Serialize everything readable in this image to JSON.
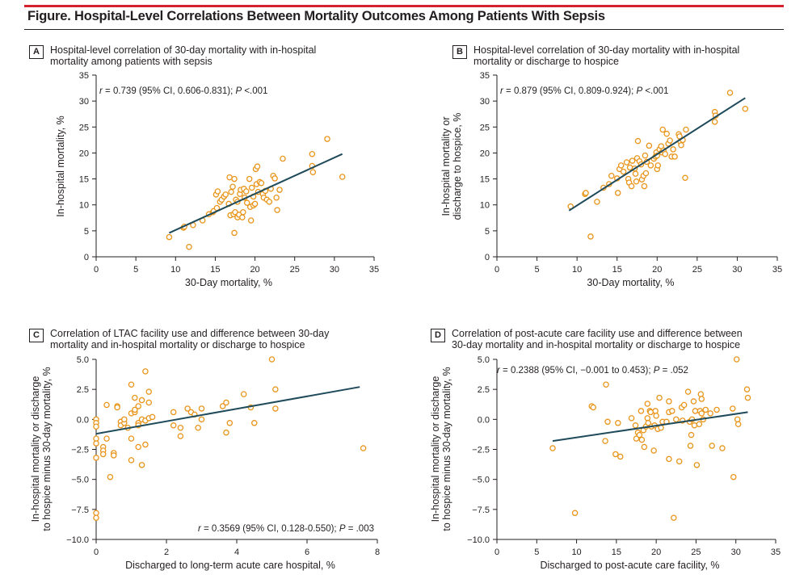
{
  "figure_title": "Figure. Hospital-Level Correlations Between Mortality Outcomes Among Patients With Sepsis",
  "colors": {
    "accent_bar": "#d5202e",
    "marker_stroke": "#e8951a",
    "line": "#1f4a5a",
    "axis": "#231f20"
  },
  "chart_data": [
    {
      "id": "A",
      "type": "scatter",
      "letter": "A",
      "title": "Hospital-level correlation of 30-day mortality with in-hospital mortality among patients with sepsis",
      "xlabel": "30-Day mortality, %",
      "ylabel": "In-hospital mortality, %",
      "xlim": [
        0,
        35
      ],
      "ylim": [
        0,
        35
      ],
      "xticks": [
        0,
        5,
        10,
        15,
        20,
        25,
        30,
        35
      ],
      "yticks": [
        0,
        5,
        10,
        15,
        20,
        25,
        30,
        35
      ],
      "tick_decimals": 0,
      "annotation": {
        "r_label": "r",
        "text": " = 0.739 (95% CI, 0.606-0.831); ",
        "p_label": "P",
        "p_text": " <.001",
        "position": "top-left"
      },
      "fit_line": [
        [
          9.2,
          4.6
        ],
        [
          31.0,
          19.8
        ]
      ],
      "points": [
        [
          9.2,
          3.8
        ],
        [
          11.0,
          5.6
        ],
        [
          11.1,
          5.8
        ],
        [
          11.7,
          1.9
        ],
        [
          12.2,
          6.1
        ],
        [
          13.4,
          7.0
        ],
        [
          14.2,
          8.2
        ],
        [
          14.7,
          8.6
        ],
        [
          14.8,
          8.8
        ],
        [
          15.1,
          12.0
        ],
        [
          15.2,
          9.4
        ],
        [
          15.3,
          12.6
        ],
        [
          15.6,
          10.6
        ],
        [
          15.8,
          11.0
        ],
        [
          16.1,
          11.6
        ],
        [
          16.3,
          12.0
        ],
        [
          16.7,
          10.2
        ],
        [
          16.8,
          15.3
        ],
        [
          16.9,
          8.0
        ],
        [
          17.0,
          12.5
        ],
        [
          17.2,
          13.5
        ],
        [
          17.3,
          8.2
        ],
        [
          17.4,
          4.6
        ],
        [
          17.4,
          15.0
        ],
        [
          17.5,
          8.6
        ],
        [
          17.6,
          11.0
        ],
        [
          17.8,
          7.6
        ],
        [
          17.8,
          10.6
        ],
        [
          18.0,
          8.1
        ],
        [
          18.1,
          12.1
        ],
        [
          18.2,
          12.9
        ],
        [
          18.4,
          7.6
        ],
        [
          18.5,
          8.6
        ],
        [
          18.6,
          13.1
        ],
        [
          18.7,
          11.4
        ],
        [
          18.9,
          12.6
        ],
        [
          19.0,
          10.4
        ],
        [
          19.3,
          15.0
        ],
        [
          19.4,
          9.6
        ],
        [
          19.5,
          7.0
        ],
        [
          19.6,
          13.3
        ],
        [
          19.8,
          11.6
        ],
        [
          19.8,
          9.9
        ],
        [
          20.0,
          10.2
        ],
        [
          20.1,
          16.9
        ],
        [
          20.2,
          14.0
        ],
        [
          20.3,
          17.4
        ],
        [
          20.4,
          12.5
        ],
        [
          20.6,
          14.4
        ],
        [
          20.8,
          14.2
        ],
        [
          21.0,
          12.1
        ],
        [
          21.1,
          11.4
        ],
        [
          21.3,
          12.7
        ],
        [
          21.5,
          11.0
        ],
        [
          21.8,
          10.6
        ],
        [
          22.0,
          13.1
        ],
        [
          22.3,
          15.6
        ],
        [
          22.5,
          15.1
        ],
        [
          22.7,
          11.4
        ],
        [
          22.8,
          9.0
        ],
        [
          23.1,
          12.9
        ],
        [
          23.5,
          18.9
        ],
        [
          27.2,
          19.8
        ],
        [
          27.2,
          17.5
        ],
        [
          27.3,
          16.3
        ],
        [
          29.1,
          22.7
        ],
        [
          31.0,
          15.4
        ]
      ]
    },
    {
      "id": "B",
      "type": "scatter",
      "letter": "B",
      "title": "Hospital-level correlation of 30-day mortality with in-hospital mortality or discharge to hospice",
      "xlabel": "30-Day mortality, %",
      "ylabel": "In-hospital mortality or discharge to hospice, %",
      "ylabel_lines": [
        "In-hospital mortality or",
        "discharge to hospice, %"
      ],
      "xlim": [
        0,
        35
      ],
      "ylim": [
        0,
        35
      ],
      "xticks": [
        0,
        5,
        10,
        15,
        20,
        25,
        30,
        35
      ],
      "yticks": [
        0,
        5,
        10,
        15,
        20,
        25,
        30,
        35
      ],
      "tick_decimals": 0,
      "annotation": {
        "r_label": "r",
        "text": " = 0.879 (95% CI, 0.809-0.924); ",
        "p_label": "P",
        "p_text": " <.001",
        "position": "top-left"
      },
      "fit_line": [
        [
          9.0,
          8.9
        ],
        [
          31.0,
          30.6
        ]
      ],
      "points": [
        [
          9.2,
          9.7
        ],
        [
          11.0,
          12.1
        ],
        [
          11.1,
          12.3
        ],
        [
          11.7,
          3.9
        ],
        [
          12.5,
          10.6
        ],
        [
          13.3,
          13.3
        ],
        [
          14.0,
          14.0
        ],
        [
          14.3,
          15.6
        ],
        [
          15.0,
          15.1
        ],
        [
          15.1,
          12.3
        ],
        [
          15.3,
          16.9
        ],
        [
          15.5,
          17.6
        ],
        [
          15.8,
          16.4
        ],
        [
          16.2,
          18.2
        ],
        [
          16.4,
          15.0
        ],
        [
          16.5,
          14.3
        ],
        [
          16.6,
          17.2
        ],
        [
          16.8,
          13.6
        ],
        [
          16.9,
          18.5
        ],
        [
          17.2,
          17.0
        ],
        [
          17.3,
          16.0
        ],
        [
          17.4,
          14.5
        ],
        [
          17.5,
          19.0
        ],
        [
          17.6,
          22.3
        ],
        [
          17.8,
          18.4
        ],
        [
          18.0,
          17.8
        ],
        [
          18.1,
          14.9
        ],
        [
          18.3,
          15.6
        ],
        [
          18.4,
          13.6
        ],
        [
          18.5,
          19.5
        ],
        [
          18.6,
          16.1
        ],
        [
          18.7,
          18.3
        ],
        [
          19.0,
          21.4
        ],
        [
          19.2,
          17.6
        ],
        [
          19.6,
          18.9
        ],
        [
          19.8,
          19.3
        ],
        [
          19.9,
          20.1
        ],
        [
          20.0,
          19.5
        ],
        [
          20.0,
          16.9
        ],
        [
          20.1,
          17.6
        ],
        [
          20.3,
          20.7
        ],
        [
          20.5,
          21.3
        ],
        [
          20.6,
          20.1
        ],
        [
          20.7,
          24.5
        ],
        [
          20.8,
          20.5
        ],
        [
          21.0,
          19.8
        ],
        [
          21.2,
          23.7
        ],
        [
          21.4,
          21.8
        ],
        [
          21.6,
          22.4
        ],
        [
          21.8,
          19.3
        ],
        [
          22.0,
          20.7
        ],
        [
          22.2,
          19.3
        ],
        [
          22.7,
          23.6
        ],
        [
          22.8,
          23.2
        ],
        [
          22.9,
          22.2
        ],
        [
          23.0,
          21.5
        ],
        [
          23.2,
          22.5
        ],
        [
          23.5,
          15.2
        ],
        [
          23.6,
          24.5
        ],
        [
          27.2,
          27.9
        ],
        [
          27.3,
          27.2
        ],
        [
          27.2,
          26.0
        ],
        [
          29.1,
          31.6
        ],
        [
          31.0,
          28.5
        ]
      ]
    },
    {
      "id": "C",
      "type": "scatter",
      "letter": "C",
      "title": "Correlation of LTAC facility use and difference between 30-day mortality and in-hospital mortality or discharge to hospice",
      "xlabel": "Discharged to long-term acute care hospital, %",
      "ylabel": "In-hospital mortality or discharge to hospice minus 30-day mortality, %",
      "ylabel_lines": [
        "In-hospital mortality or discharge",
        "to hospice minus 30-day mortality, %"
      ],
      "xlim": [
        0,
        8
      ],
      "ylim": [
        -10,
        5
      ],
      "xticks": [
        0,
        2,
        4,
        6,
        8
      ],
      "yticks": [
        -10,
        -7.5,
        -5,
        -2.5,
        0,
        2.5,
        5
      ],
      "tick_decimals": 1,
      "annotation": {
        "r_label": "r",
        "text": " = 0.3569 (95% CI, 0.128-0.550); ",
        "p_label": "P",
        "p_text": " = .003",
        "position": "bottom-right"
      },
      "fit_line": [
        [
          0.0,
          -1.2
        ],
        [
          7.5,
          2.7
        ]
      ],
      "points": [
        [
          0.0,
          0.0
        ],
        [
          0.0,
          -0.3
        ],
        [
          0.0,
          -0.6
        ],
        [
          0.0,
          -1.6
        ],
        [
          0.0,
          -2.0
        ],
        [
          0.0,
          -3.2
        ],
        [
          0.0,
          -7.8
        ],
        [
          0.0,
          -8.2
        ],
        [
          0.2,
          -2.3
        ],
        [
          0.2,
          -2.6
        ],
        [
          0.2,
          -2.9
        ],
        [
          0.3,
          1.2
        ],
        [
          0.3,
          -1.6
        ],
        [
          0.4,
          -4.8
        ],
        [
          0.5,
          -2.8
        ],
        [
          0.5,
          -3.0
        ],
        [
          0.6,
          1.1
        ],
        [
          0.6,
          1.0
        ],
        [
          0.7,
          -0.2
        ],
        [
          0.7,
          -0.5
        ],
        [
          0.8,
          -0.3
        ],
        [
          0.8,
          0.0
        ],
        [
          0.9,
          -0.7
        ],
        [
          1.0,
          0.5
        ],
        [
          1.0,
          2.9
        ],
        [
          1.0,
          -1.6
        ],
        [
          1.0,
          -3.4
        ],
        [
          1.1,
          1.8
        ],
        [
          1.1,
          0.6
        ],
        [
          1.1,
          0.8
        ],
        [
          1.2,
          1.1
        ],
        [
          1.2,
          -0.3
        ],
        [
          1.2,
          -0.5
        ],
        [
          1.2,
          -2.3
        ],
        [
          1.3,
          1.6
        ],
        [
          1.3,
          0.0
        ],
        [
          1.3,
          -3.8
        ],
        [
          1.4,
          4.0
        ],
        [
          1.4,
          -2.1
        ],
        [
          1.4,
          -0.1
        ],
        [
          1.5,
          2.3
        ],
        [
          1.5,
          1.4
        ],
        [
          1.5,
          0.1
        ],
        [
          1.6,
          0.2
        ],
        [
          2.2,
          0.6
        ],
        [
          2.2,
          -0.5
        ],
        [
          2.4,
          -0.7
        ],
        [
          2.4,
          -1.4
        ],
        [
          2.6,
          0.9
        ],
        [
          2.7,
          0.6
        ],
        [
          2.8,
          0.4
        ],
        [
          2.9,
          -0.7
        ],
        [
          3.0,
          0.9
        ],
        [
          3.0,
          0.0
        ],
        [
          3.6,
          1.1
        ],
        [
          3.7,
          1.4
        ],
        [
          3.7,
          -1.1
        ],
        [
          3.8,
          -0.3
        ],
        [
          4.2,
          2.1
        ],
        [
          4.4,
          1.0
        ],
        [
          4.5,
          -0.3
        ],
        [
          5.0,
          5.0
        ],
        [
          5.1,
          2.5
        ],
        [
          5.1,
          0.9
        ],
        [
          7.6,
          -2.4
        ]
      ]
    },
    {
      "id": "D",
      "type": "scatter",
      "letter": "D",
      "title": "Correlation of post-acute care facility use and difference between 30-day mortality and in-hospital mortality or discharge to hospice",
      "xlabel": "Discharged to post-acute care facility, %",
      "ylabel": "In-hospital mortality or discharge to hospice minus 30-day mortality, %",
      "ylabel_lines": [
        "In-hospital mortality or discharge",
        "to hospice minus 30-day mortality, %"
      ],
      "xlim": [
        0,
        35
      ],
      "ylim": [
        -10,
        5
      ],
      "xticks": [
        0,
        5,
        10,
        15,
        20,
        25,
        30,
        35
      ],
      "yticks": [
        -10,
        -7.5,
        -5,
        -2.5,
        0,
        2.5,
        5
      ],
      "tick_decimals": 1,
      "annotation": {
        "r_label": "r",
        "text": " = 0.2388 (95% CI, −0.001 to 0.453); ",
        "p_label": "P",
        "p_text": " = .052",
        "position": "top-left"
      },
      "fit_line": [
        [
          7.0,
          -1.8
        ],
        [
          31.5,
          0.6
        ]
      ],
      "points": [
        [
          7.0,
          -2.4
        ],
        [
          9.8,
          -7.8
        ],
        [
          11.9,
          1.1
        ],
        [
          12.1,
          1.0
        ],
        [
          13.6,
          -1.8
        ],
        [
          13.7,
          2.9
        ],
        [
          13.9,
          -0.2
        ],
        [
          14.9,
          -2.9
        ],
        [
          15.2,
          -0.3
        ],
        [
          15.5,
          -3.1
        ],
        [
          16.9,
          0.1
        ],
        [
          17.4,
          -0.5
        ],
        [
          17.5,
          -1.6
        ],
        [
          17.7,
          -1.1
        ],
        [
          17.9,
          -1.3
        ],
        [
          18.1,
          0.7
        ],
        [
          18.2,
          -1.7
        ],
        [
          18.4,
          -0.9
        ],
        [
          18.5,
          -2.3
        ],
        [
          18.7,
          -0.6
        ],
        [
          18.9,
          1.3
        ],
        [
          18.9,
          0.1
        ],
        [
          19.0,
          -0.3
        ],
        [
          19.2,
          0.7
        ],
        [
          19.3,
          0.6
        ],
        [
          19.4,
          -0.6
        ],
        [
          19.7,
          -2.6
        ],
        [
          19.8,
          -0.5
        ],
        [
          19.9,
          0.7
        ],
        [
          20.0,
          0.3
        ],
        [
          20.2,
          -0.8
        ],
        [
          20.4,
          1.8
        ],
        [
          20.6,
          -0.7
        ],
        [
          20.8,
          -0.2
        ],
        [
          21.3,
          -0.2
        ],
        [
          21.6,
          0.6
        ],
        [
          21.6,
          1.5
        ],
        [
          21.6,
          -3.3
        ],
        [
          22.0,
          0.7
        ],
        [
          22.2,
          -8.2
        ],
        [
          22.5,
          0.0
        ],
        [
          22.9,
          -3.5
        ],
        [
          23.2,
          1.0
        ],
        [
          23.3,
          -0.1
        ],
        [
          23.5,
          1.2
        ],
        [
          24.0,
          2.3
        ],
        [
          24.2,
          -0.2
        ],
        [
          24.3,
          -2.2
        ],
        [
          24.4,
          -1.3
        ],
        [
          24.5,
          0.0
        ],
        [
          24.7,
          1.5
        ],
        [
          24.8,
          -0.5
        ],
        [
          24.9,
          0.7
        ],
        [
          25.1,
          -3.8
        ],
        [
          25.4,
          -0.4
        ],
        [
          25.5,
          0.7
        ],
        [
          25.6,
          2.1
        ],
        [
          25.7,
          0.5
        ],
        [
          25.7,
          1.7
        ],
        [
          25.9,
          0.0
        ],
        [
          26.2,
          0.8
        ],
        [
          26.8,
          0.5
        ],
        [
          27.0,
          -2.2
        ],
        [
          27.6,
          0.8
        ],
        [
          28.3,
          -2.4
        ],
        [
          29.6,
          0.9
        ],
        [
          29.7,
          -4.8
        ],
        [
          30.1,
          5.0
        ],
        [
          30.2,
          0.0
        ],
        [
          30.3,
          -0.4
        ],
        [
          31.4,
          2.5
        ],
        [
          31.5,
          1.8
        ]
      ]
    }
  ]
}
